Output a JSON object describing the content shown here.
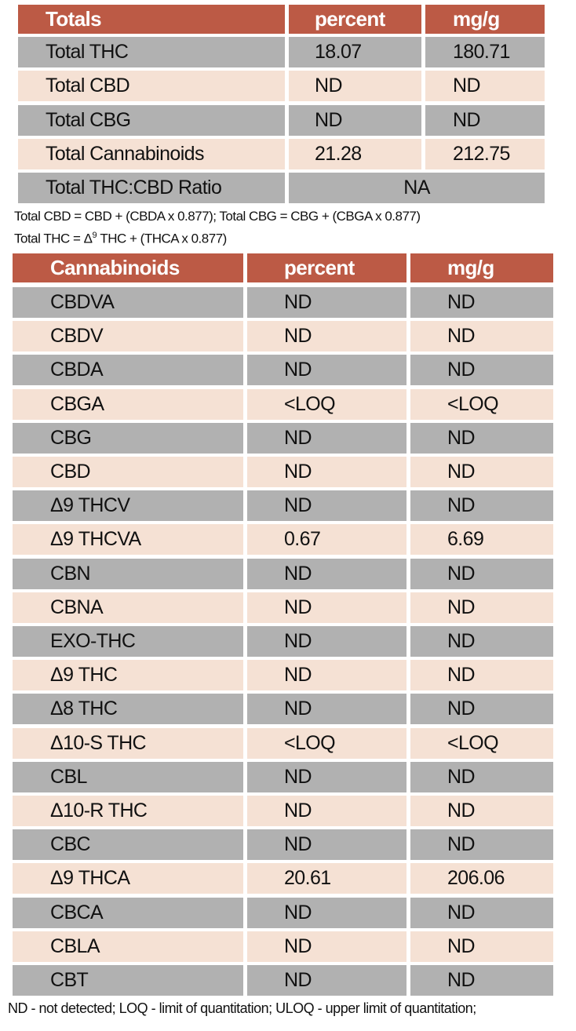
{
  "totals": {
    "headers": [
      "Totals",
      "percent",
      "mg/g"
    ],
    "rows": [
      {
        "name": "Total THC",
        "percent": "18.07",
        "mgg": "180.71"
      },
      {
        "name": "Total CBD",
        "percent": "ND",
        "mgg": "ND"
      },
      {
        "name": "Total CBG",
        "percent": "ND",
        "mgg": "ND"
      },
      {
        "name": "Total Cannabinoids",
        "percent": "21.28",
        "mgg": "212.75"
      }
    ],
    "ratio": {
      "name": "Total THC:CBD Ratio",
      "value": "NA"
    }
  },
  "formula_notes": {
    "line1": "Total CBD = CBD + (CBDA x 0.877); Total CBG = CBG + (CBGA x 0.877)",
    "line2_prefix": "Total THC = Δ",
    "line2_sup": "9",
    "line2_suffix": " THC + (THCA x 0.877)"
  },
  "cannabinoids": {
    "headers": [
      "Cannabinoids",
      "percent",
      "mg/g"
    ],
    "rows": [
      {
        "name": "CBDVA",
        "percent": "ND",
        "mgg": "ND"
      },
      {
        "name": "CBDV",
        "percent": "ND",
        "mgg": "ND"
      },
      {
        "name": "CBDA",
        "percent": "ND",
        "mgg": "ND"
      },
      {
        "name": "CBGA",
        "percent": "<LOQ",
        "mgg": "<LOQ"
      },
      {
        "name": "CBG",
        "percent": "ND",
        "mgg": "ND"
      },
      {
        "name": "CBD",
        "percent": "ND",
        "mgg": "ND"
      },
      {
        "name": "Δ9 THCV",
        "percent": "ND",
        "mgg": "ND"
      },
      {
        "name": "Δ9 THCVA",
        "percent": "0.67",
        "mgg": "6.69"
      },
      {
        "name": "CBN",
        "percent": "ND",
        "mgg": "ND"
      },
      {
        "name": "CBNA",
        "percent": "ND",
        "mgg": "ND"
      },
      {
        "name": "EXO-THC",
        "percent": "ND",
        "mgg": "ND"
      },
      {
        "name": "Δ9 THC",
        "percent": "ND",
        "mgg": "ND"
      },
      {
        "name": "Δ8 THC",
        "percent": "ND",
        "mgg": "ND"
      },
      {
        "name": "Δ10-S THC",
        "percent": "<LOQ",
        "mgg": "<LOQ"
      },
      {
        "name": "CBL",
        "percent": "ND",
        "mgg": "ND"
      },
      {
        "name": "Δ10-R THC",
        "percent": "ND",
        "mgg": "ND"
      },
      {
        "name": "CBC",
        "percent": "ND",
        "mgg": "ND"
      },
      {
        "name": "Δ9 THCA",
        "percent": "20.61",
        "mgg": "206.06"
      },
      {
        "name": "CBCA",
        "percent": "ND",
        "mgg": "ND"
      },
      {
        "name": "CBLA",
        "percent": "ND",
        "mgg": "ND"
      },
      {
        "name": "CBT",
        "percent": "ND",
        "mgg": "ND"
      }
    ]
  },
  "legend_note": "ND - not detected; LOQ - limit of quantitation; ULOQ - upper limit of quantitation;",
  "colors": {
    "header": "#bc5a45",
    "row_grey": "#b1b1b1",
    "row_beige": "#f5e1d4"
  }
}
